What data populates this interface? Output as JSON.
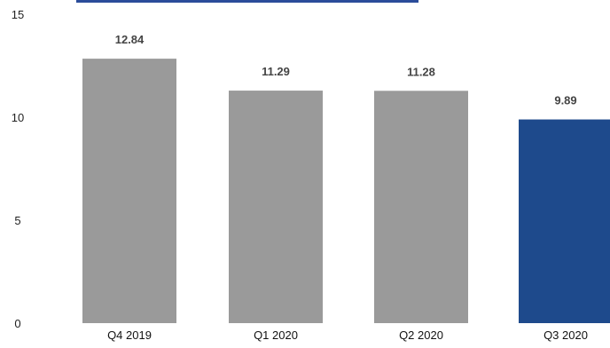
{
  "chart_data": {
    "type": "bar",
    "categories": [
      "Q4 2019",
      "Q1 2020",
      "Q2 2020",
      "Q3 2020"
    ],
    "values": [
      12.84,
      11.29,
      11.28,
      9.89
    ],
    "data_labels": [
      "12.84",
      "11.29",
      "11.28",
      "9.89"
    ],
    "y_ticks": [
      "0",
      "5",
      "10",
      "15"
    ],
    "ylim": [
      0,
      15
    ],
    "grid": false,
    "colors": {
      "bar_default": "#9a9a9a",
      "bar_highlight": "#1e4a8c",
      "banner": "#2b4c9a"
    },
    "highlight_index": 3
  }
}
